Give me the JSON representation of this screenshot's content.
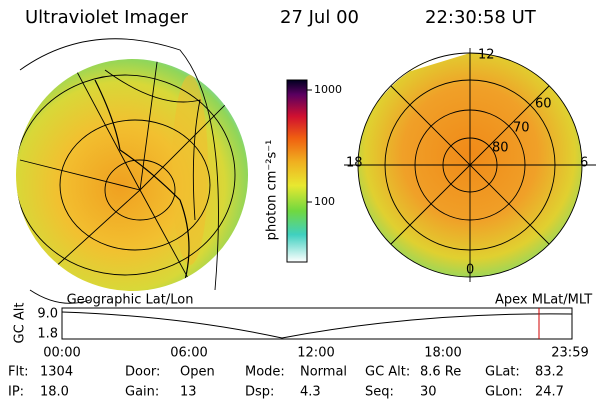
{
  "header": {
    "title": "Ultraviolet Imager",
    "date": "27 Jul 00",
    "time": "22:30:58 UT"
  },
  "colorbar": {
    "label": "photon cm⁻²s⁻¹",
    "ticks": [
      "1000",
      "100"
    ]
  },
  "left_map": {
    "label": "Geographic Lat/Lon"
  },
  "right_map": {
    "label": "Apex MLat/MLT",
    "mlt_labels": [
      "12",
      "18",
      "6",
      "0"
    ],
    "mlat_labels": [
      "60",
      "70",
      "80"
    ]
  },
  "altitude_plot": {
    "axis_label": "GC Alt",
    "y_ticks": [
      "9.0",
      "1.8"
    ],
    "x_ticks": [
      "00:00",
      "06:00",
      "12:00",
      "18:00",
      "23:59"
    ]
  },
  "status": [
    {
      "label": "Flt:",
      "value": "1304"
    },
    {
      "label": "Door:",
      "value": "Open"
    },
    {
      "label": "Mode:",
      "value": "Normal"
    },
    {
      "label": "GC Alt:",
      "value": "8.6 Re"
    },
    {
      "label": "GLat:",
      "value": "83.2"
    },
    {
      "label": "IP:",
      "value": "18.0"
    },
    {
      "label": "Gain:",
      "value": "13"
    },
    {
      "label": "Dsp:",
      "value": "4.3"
    },
    {
      "label": "Seq:",
      "value": "30"
    },
    {
      "label": "GLon:",
      "value": "24.7"
    }
  ]
}
